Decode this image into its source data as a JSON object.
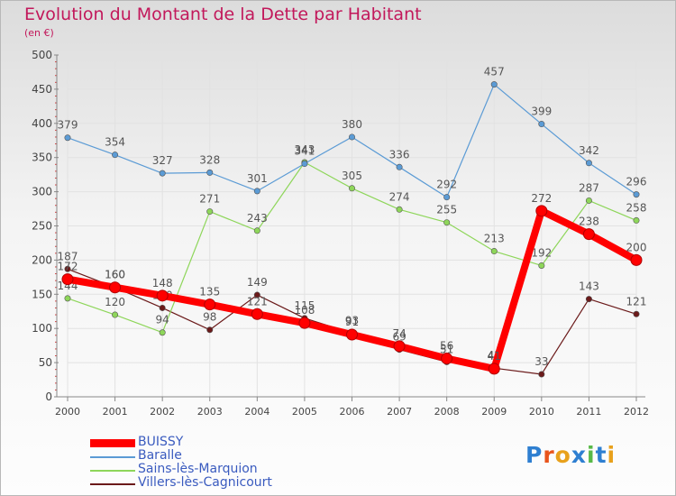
{
  "title": "Evolution du Montant de la Dette par Habitant",
  "unit_label": "(en €)",
  "logo": {
    "text": "Proxiti",
    "letter_colors": [
      "#2e7fd1",
      "#e8541c",
      "#e8a11c",
      "#2e7fd1",
      "#58b947",
      "#2e7fd1",
      "#e8a11c"
    ]
  },
  "chart_data": {
    "type": "line",
    "title": "Evolution du Montant de la Dette par Habitant",
    "ylabel": "(en €)",
    "xlabel": "",
    "ylim": [
      0,
      500
    ],
    "y_ticks": [
      0,
      50,
      100,
      150,
      200,
      250,
      300,
      350,
      400,
      450,
      500
    ],
    "categories": [
      "2000",
      "2001",
      "2002",
      "2003",
      "2004",
      "2005",
      "2006",
      "2007",
      "2008",
      "2009",
      "2010",
      "2011",
      "2012"
    ],
    "series": [
      {
        "name": "Villers-lès-Cagnicourt",
        "color": "#6b1a1a",
        "values": [
          187,
          160,
          130,
          98,
          149,
          115,
          93,
          69,
          51,
          42,
          33,
          143,
          121
        ]
      },
      {
        "name": "Sains-lès-Marquion",
        "color": "#8ed65a",
        "values": [
          144,
          120,
          94,
          271,
          243,
          343,
          305,
          274,
          255,
          213,
          192,
          287,
          258
        ]
      },
      {
        "name": "Baralle",
        "color": "#5b9bd5",
        "values": [
          379,
          354,
          327,
          328,
          301,
          341,
          380,
          336,
          292,
          457,
          399,
          342,
          296
        ]
      },
      {
        "name": "BUISSY",
        "color": "#ff0000",
        "values": [
          172,
          160,
          148,
          135,
          121,
          108,
          91,
          74,
          56,
          41,
          272,
          238,
          200
        ]
      }
    ],
    "legend_order": [
      "BUISSY",
      "Baralle",
      "Sains-lès-Marquion",
      "Villers-lès-Cagnicourt"
    ],
    "legend_position": "bottom-left",
    "grid": true
  }
}
